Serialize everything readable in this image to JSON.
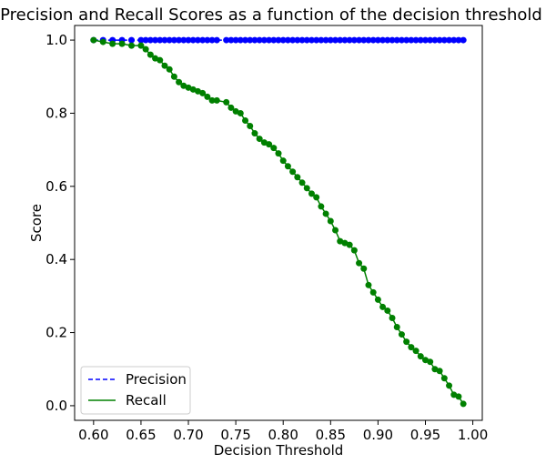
{
  "chart_data": {
    "type": "line",
    "title": "Precision and Recall Scores as a function of the decision threshold",
    "xlabel": "Decision Threshold",
    "ylabel": "Score",
    "xlim": [
      0.58,
      1.01
    ],
    "ylim": [
      -0.04,
      1.04
    ],
    "xticks": [
      "0.60",
      "0.65",
      "0.70",
      "0.75",
      "0.80",
      "0.85",
      "0.90",
      "0.95",
      "1.00"
    ],
    "yticks": [
      "0.0",
      "0.2",
      "0.4",
      "0.6",
      "0.8",
      "1.0"
    ],
    "grid": false,
    "legend_position": "lower-left",
    "x": [
      0.6,
      0.61,
      0.62,
      0.63,
      0.64,
      0.65,
      0.655,
      0.66,
      0.665,
      0.67,
      0.675,
      0.68,
      0.685,
      0.69,
      0.695,
      0.7,
      0.705,
      0.71,
      0.715,
      0.72,
      0.725,
      0.73,
      0.74,
      0.745,
      0.75,
      0.755,
      0.76,
      0.765,
      0.77,
      0.775,
      0.78,
      0.785,
      0.79,
      0.795,
      0.8,
      0.805,
      0.81,
      0.815,
      0.82,
      0.825,
      0.83,
      0.835,
      0.84,
      0.845,
      0.85,
      0.855,
      0.86,
      0.865,
      0.87,
      0.875,
      0.88,
      0.885,
      0.89,
      0.895,
      0.9,
      0.905,
      0.91,
      0.915,
      0.92,
      0.925,
      0.93,
      0.935,
      0.94,
      0.945,
      0.95,
      0.955,
      0.96,
      0.965,
      0.97,
      0.975,
      0.98,
      0.985,
      0.99
    ],
    "series": [
      {
        "name": "Precision",
        "color": "#0000ff",
        "linestyle": "dashed",
        "values": [
          1,
          1,
          1,
          1,
          1,
          1,
          1,
          1,
          1,
          1,
          1,
          1,
          1,
          1,
          1,
          1,
          1,
          1,
          1,
          1,
          1,
          1,
          1,
          1,
          1,
          1,
          1,
          1,
          1,
          1,
          1,
          1,
          1,
          1,
          1,
          1,
          1,
          1,
          1,
          1,
          1,
          1,
          1,
          1,
          1,
          1,
          1,
          1,
          1,
          1,
          1,
          1,
          1,
          1,
          1,
          1,
          1,
          1,
          1,
          1,
          1,
          1,
          1,
          1,
          1,
          1,
          1,
          1,
          1,
          1,
          1,
          1,
          1
        ]
      },
      {
        "name": "Recall",
        "color": "#008000",
        "linestyle": "solid",
        "values": [
          1.0,
          0.995,
          0.99,
          0.99,
          0.985,
          0.985,
          0.975,
          0.96,
          0.95,
          0.945,
          0.93,
          0.92,
          0.9,
          0.885,
          0.875,
          0.87,
          0.865,
          0.86,
          0.855,
          0.845,
          0.835,
          0.835,
          0.83,
          0.815,
          0.805,
          0.8,
          0.78,
          0.765,
          0.745,
          0.73,
          0.72,
          0.715,
          0.705,
          0.69,
          0.67,
          0.655,
          0.64,
          0.625,
          0.61,
          0.595,
          0.58,
          0.57,
          0.545,
          0.525,
          0.505,
          0.48,
          0.45,
          0.445,
          0.44,
          0.425,
          0.39,
          0.375,
          0.33,
          0.31,
          0.29,
          0.27,
          0.26,
          0.24,
          0.215,
          0.195,
          0.175,
          0.16,
          0.15,
          0.135,
          0.125,
          0.12,
          0.1,
          0.095,
          0.075,
          0.055,
          0.03,
          0.025,
          0.005
        ]
      }
    ]
  }
}
